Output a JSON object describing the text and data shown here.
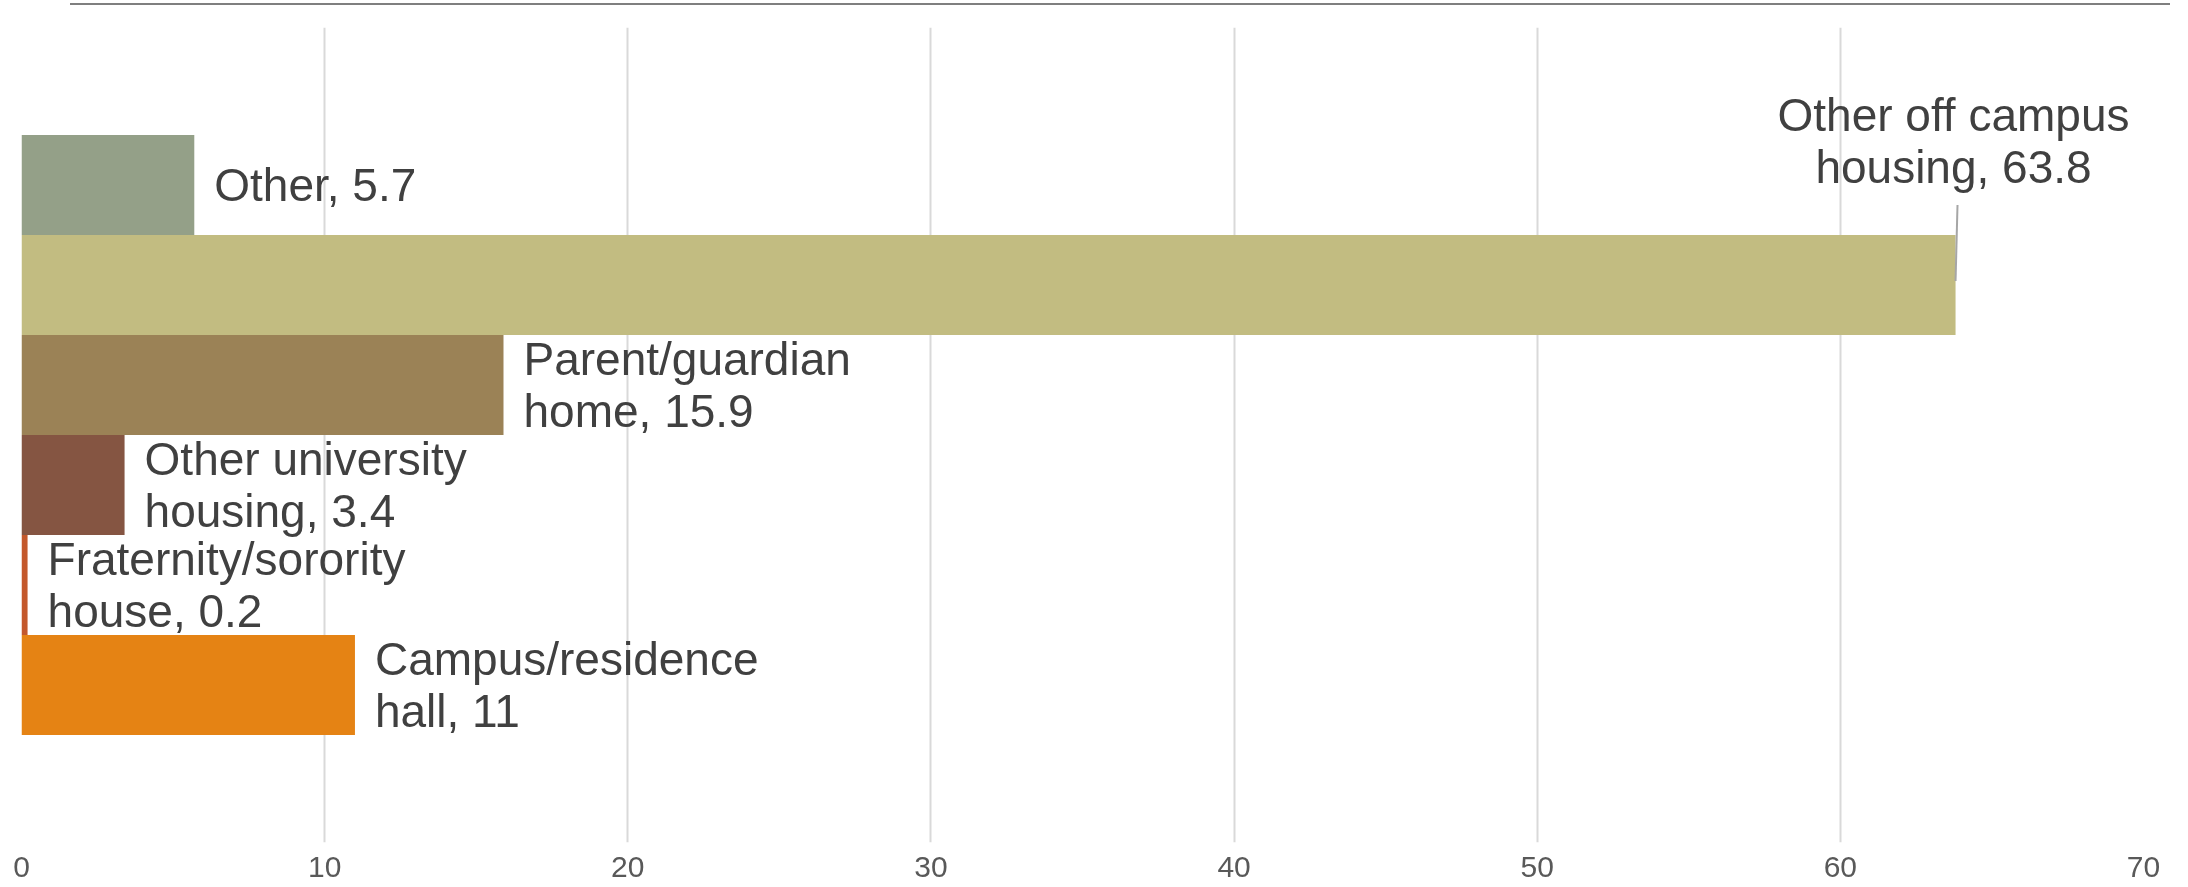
{
  "chart_data": {
    "type": "bar",
    "orientation": "horizontal",
    "categories": [
      null,
      null,
      null,
      null,
      null,
      null
    ],
    "values": [
      5.7,
      63.8,
      15.9,
      3.4,
      0.2,
      11
    ],
    "colors": [
      "#94a088",
      "#c2bc81",
      "#9b8256",
      "#855542",
      "#c3582c",
      "#e58314"
    ],
    "value_labels": [
      "Other, 5.7",
      "Other off campus housing, 63.8",
      "Parent/guardian home, 15.9",
      "Other university housing, 3.4",
      "Fraternity/sorority house, 0.2",
      "Campus/residence hall, 11"
    ],
    "xlim": [
      0,
      70
    ],
    "xticks": [
      0,
      10,
      20,
      30,
      40,
      50,
      60,
      70
    ],
    "grid": "x",
    "tick_labels": "x"
  }
}
